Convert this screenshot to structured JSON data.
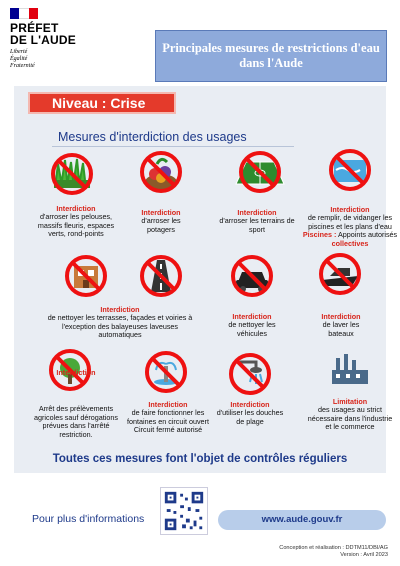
{
  "header": {
    "prefet_line1": "PRÉFET",
    "prefet_line2": "DE L'AUDE",
    "motto": [
      "Liberté",
      "Égalité",
      "Fraternité"
    ],
    "flag_colors": [
      "#000091",
      "#ffffff",
      "#e1000f"
    ]
  },
  "title": "Principales mesures de restrictions d'eau dans l'Aude",
  "niveau": "Niveau : Crise",
  "subtitle": "Mesures d'interdiction des usages",
  "items": [
    {
      "icon": "lawn-icon",
      "red": "Interdiction",
      "text": "d'arroser les pelouses, massifs fleuris, espaces verts, rond-points"
    },
    {
      "icon": "vegetables-icon",
      "red": "Interdiction",
      "text": "d'arroser les potagers"
    },
    {
      "icon": "sports-field-icon",
      "red": "Interdiction",
      "text": "d'arroser les terrains de sport"
    },
    {
      "icon": "pool-icon",
      "red": "Interdiction",
      "text": "de remplir, de vidanger les piscines et les plans d'eau",
      "extra_red": "Piscines :",
      "extra": " Appoints autorisés",
      "extra_red2": "collectives"
    },
    {
      "icon": "facade-icon",
      "red": "Interdiction",
      "text": "de nettoyer les terrasses, façades et voiries à l'exception des balayeuses laveuses automatiques"
    },
    {
      "icon": "road-icon",
      "red": "",
      "text": ""
    },
    {
      "icon": "car-icon",
      "red": "Interdiction",
      "text": "de nettoyer les véhicules"
    },
    {
      "icon": "boat-icon",
      "red": "Interdiction",
      "text": "de laver les bateaux"
    },
    {
      "icon": "agriculture-icon",
      "red": "Interdiction",
      "text": "Arrêt des prélèvements agricoles sauf dérogations prévues dans l'arrêté restriction."
    },
    {
      "icon": "fountain-icon",
      "red": "Interdiction",
      "text": "de faire fonctionner les fontaines en circuit ouvert Circuit fermé autorisé"
    },
    {
      "icon": "shower-icon",
      "red": "Interdiction",
      "text": "d'utiliser les douches de plage"
    },
    {
      "icon": "factory-icon",
      "red": "Limitation",
      "text": "des usages au strict nécessaire dans l'industrie et le commerce"
    }
  ],
  "controls": "Toutes ces mesures font l'objet de contrôles réguliers",
  "more_info": "Pour plus d'informations",
  "url": "www.aude.gouv.fr",
  "credits": [
    "Conception et réalisation : DDTM11/DBI/AG",
    "Version : Avril 2023"
  ],
  "colors": {
    "panel": "#e9edf3",
    "title_box": "#8eaadb",
    "niveau": "#e43a2b",
    "accent": "#1e3a8a",
    "interdiction": "#d8261c"
  }
}
